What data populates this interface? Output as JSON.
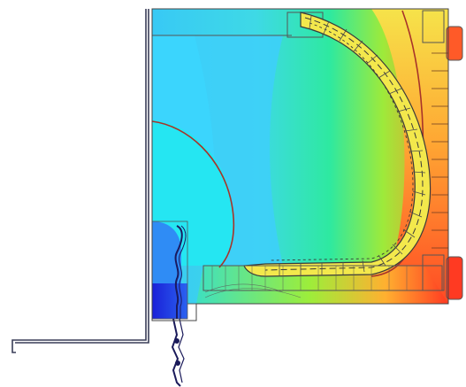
{
  "figure": {
    "kind": "finite element thermal contour plot of a window frame cross-section",
    "colors": {
      "cold_deep": "#1c12c8",
      "cold": "#1e6cf0",
      "cool": "#3ed1ff",
      "mid": "#2ee9a0",
      "warm": "#f6e34a",
      "hot": "#ff9a2e",
      "hottest": "#ff3a22",
      "isotherm_line": "#a8332a",
      "mesh_line": "#4b4b4b"
    },
    "text_labels": []
  }
}
